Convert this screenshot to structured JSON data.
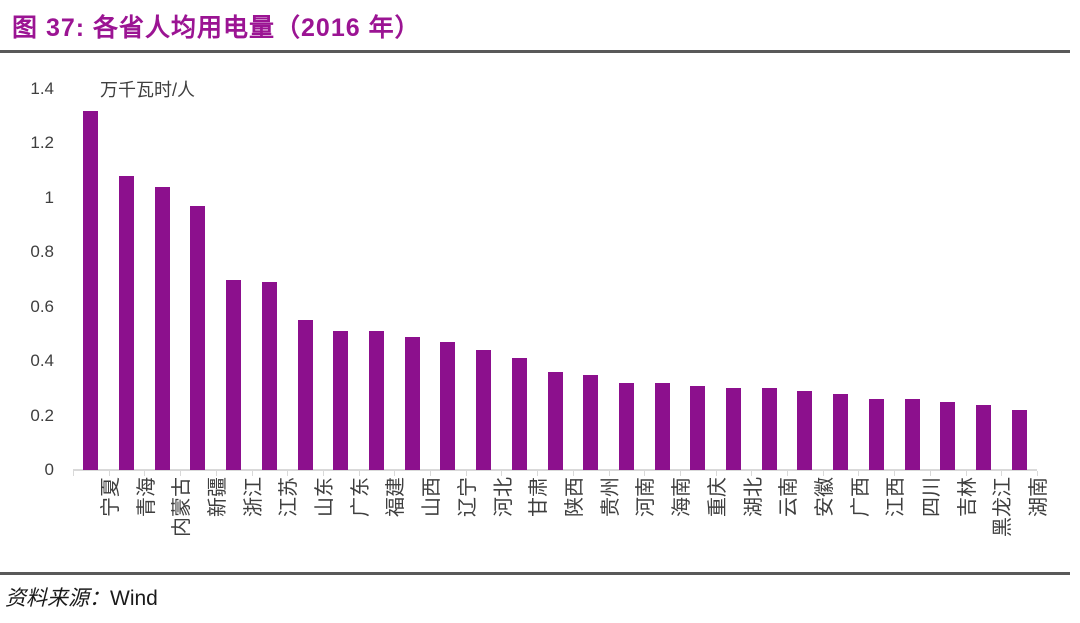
{
  "figure": {
    "title": "图 37:  各省人均用电量（2016 年）",
    "source_label": "资料来源：",
    "source_value": "Wind"
  },
  "colors": {
    "title": "#9B1493",
    "bar": "#8C108D",
    "divider": "#595959",
    "axis": "#D9D9D9",
    "text": "#3F3F3F",
    "footer_text": "#1A1A1A"
  },
  "chart_data": {
    "type": "bar",
    "title": "各省人均用电量（2016 年）",
    "unit_label": "万千瓦时/人",
    "xlabel": "",
    "ylabel": "万千瓦时/人",
    "ylim": [
      0,
      1.4
    ],
    "grid": false,
    "legend": false,
    "yticks": [
      0,
      0.2,
      0.4,
      0.6,
      0.8,
      1,
      1.2,
      1.4
    ],
    "ytick_labels": [
      "0",
      "0.2",
      "0.4",
      "0.6",
      "0.8",
      "1",
      "1.2",
      "1.4"
    ],
    "categories": [
      "宁夏",
      "青海",
      "内蒙古",
      "新疆",
      "浙江",
      "江苏",
      "山东",
      "广东",
      "福建",
      "山西",
      "辽宁",
      "河北",
      "甘肃",
      "陕西",
      "贵州",
      "河南",
      "海南",
      "重庆",
      "湖北",
      "云南",
      "安徽",
      "广西",
      "江西",
      "四川",
      "吉林",
      "黑龙江",
      "湖南"
    ],
    "values": [
      1.32,
      1.08,
      1.04,
      0.97,
      0.7,
      0.69,
      0.55,
      0.51,
      0.51,
      0.49,
      0.47,
      0.44,
      0.41,
      0.36,
      0.35,
      0.32,
      0.32,
      0.31,
      0.3,
      0.3,
      0.29,
      0.28,
      0.26,
      0.26,
      0.25,
      0.24,
      0.22
    ]
  }
}
